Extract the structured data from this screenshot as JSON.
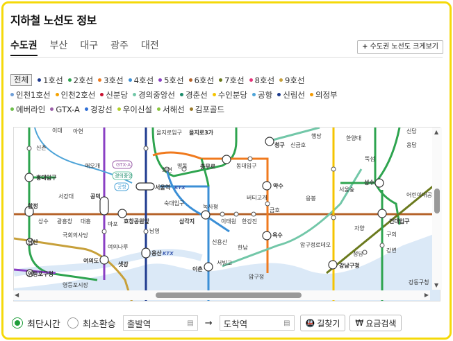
{
  "title": "지하철 노선도 정보",
  "tabs": [
    "수도권",
    "부산",
    "대구",
    "광주",
    "대전"
  ],
  "big_map_button": "수도권 노선도 크게보기",
  "all_button": "전체",
  "line_rows": [
    [
      {
        "name": "1호선",
        "color": "#1f3b8f"
      },
      {
        "name": "2호선",
        "color": "#2ea44f"
      },
      {
        "name": "3호선",
        "color": "#f07a1e"
      },
      {
        "name": "4호선",
        "color": "#3b8fd6"
      },
      {
        "name": "5호선",
        "color": "#8a3fc4"
      },
      {
        "name": "6호선",
        "color": "#b5632a"
      },
      {
        "name": "7호선",
        "color": "#6b7a1e"
      },
      {
        "name": "8호선",
        "color": "#e5337a"
      },
      {
        "name": "9호선",
        "color": "#c7a03a"
      }
    ],
    [
      {
        "name": "인천1호선",
        "color": "#6f9fd8"
      },
      {
        "name": "인천2호선",
        "color": "#f5a200"
      },
      {
        "name": "신분당",
        "color": "#c8102e"
      },
      {
        "name": "경의중앙선",
        "color": "#72c7a8"
      },
      {
        "name": "경춘선",
        "color": "#1a8a6a"
      },
      {
        "name": "수인분당",
        "color": "#f5c400"
      },
      {
        "name": "공항",
        "color": "#4ea4d8"
      },
      {
        "name": "신림선",
        "color": "#1b3a8c"
      },
      {
        "name": "의정부",
        "color": "#f59a00"
      }
    ],
    [
      {
        "name": "에버라인",
        "color": "#6dbf4a"
      },
      {
        "name": "GTX-A",
        "color": "#9b5fa8"
      },
      {
        "name": "경강선",
        "color": "#3170d6"
      },
      {
        "name": "우이신설",
        "color": "#b3cf2a"
      },
      {
        "name": "서해선",
        "color": "#8ac43f"
      },
      {
        "name": "김포골드",
        "color": "#9a7a2a"
      }
    ]
  ],
  "map": {
    "stations": {
      "s1": "이대",
      "s2": "신촌",
      "s3": "홍대입구",
      "s4": "서강대",
      "s5": "공덕",
      "s6": "합정",
      "s7": "상수",
      "s8": "광흥창",
      "s9": "대흥",
      "s10": "당산",
      "s11": "국회의사당",
      "s12": "여의나루",
      "s13": "여의도",
      "s14": "영등포구청",
      "s15": "영등포시장",
      "s16": "샛강",
      "s17": "애오개",
      "s18": "서울역",
      "s19": "회현",
      "s20": "명동",
      "s21": "충무로",
      "s22": "동대입구",
      "s23": "숙대입구",
      "s24": "효창공원앞",
      "s25": "삼각지",
      "s26": "남영",
      "s27": "용산",
      "s28": "이촌",
      "s29": "을지로3가",
      "s30": "을지로입구",
      "s31": "청구",
      "s32": "신금호",
      "s33": "약수",
      "s34": "버티고개",
      "s35": "금호",
      "s36": "녹사평",
      "s37": "이태원",
      "s38": "한강진",
      "s39": "신용산",
      "s40": "서빙고",
      "s41": "한남",
      "s42": "옥수",
      "s43": "압구정",
      "s44": "응봉",
      "s45": "행당",
      "s46": "한양대",
      "s47": "뚝섬",
      "s48": "서울숲",
      "s49": "성수",
      "s50": "건대입구",
      "s51": "구의",
      "s52": "강변",
      "s53": "자양",
      "s54": "청담",
      "s55": "강남구청",
      "s56": "압구정로데오",
      "s57": "어린이대공원",
      "s58": "용답",
      "s59": "신답",
      "s60": "아현",
      "s61": "마포",
      "s62": "강동구청"
    },
    "badges": {
      "gtx": "GTX-A",
      "gyeongui": "경의중앙",
      "airport": "공항",
      "ktx": "KTX"
    }
  },
  "bottom": {
    "shortest": "최단시간",
    "min_transfer": "최소환승",
    "departure_placeholder": "출발역",
    "arrival_placeholder": "도착역",
    "arrow": "→",
    "route_btn": "길찾기",
    "fare_btn": "요금검색"
  }
}
